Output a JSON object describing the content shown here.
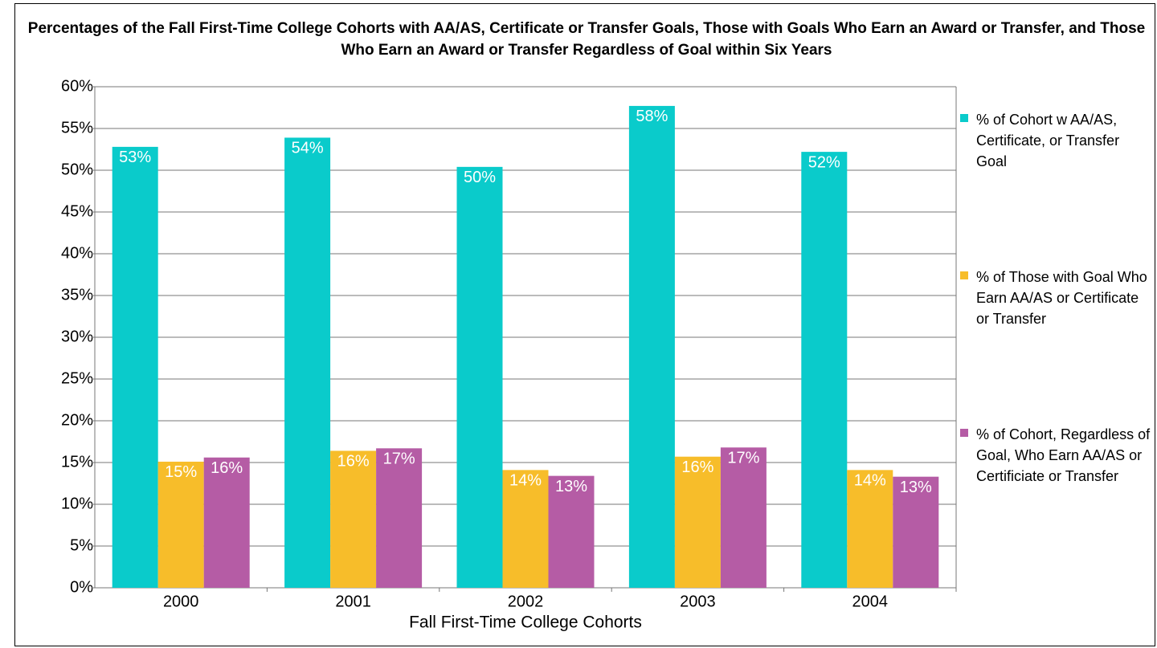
{
  "chart_data": {
    "type": "bar",
    "title": "Percentages of the Fall First-Time College Cohorts with AA/AS, Certificate or Transfer Goals, Those with Goals Who Earn an Award or Transfer, and Those Who Earn an Award or Transfer Regardless of Goal within Six Years",
    "x_label": "Fall First-Time College Cohorts",
    "categories": [
      "2000",
      "2001",
      "2002",
      "2003",
      "2004"
    ],
    "series": [
      {
        "name": "% of Cohort w AA/AS, Certificate, or Transfer Goal",
        "color": "#0acbcb",
        "values": [
          52.8,
          53.9,
          50.4,
          57.7,
          52.2
        ],
        "value_labels": [
          "53%",
          "54%",
          "50%",
          "58%",
          "52%"
        ]
      },
      {
        "name": "% of Those with Goal Who Earn AA/AS or Certificate or Transfer",
        "color": "#f7bd2a",
        "values": [
          15.1,
          16.4,
          14.1,
          15.7,
          14.1
        ],
        "value_labels": [
          "15%",
          "16%",
          "14%",
          "16%",
          "14%"
        ]
      },
      {
        "name": "% of Cohort, Regardless of Goal, Who Earn AA/AS or Certificiate or Transfer",
        "color": "#b55ca5",
        "values": [
          15.6,
          16.7,
          13.4,
          16.8,
          13.3
        ],
        "value_labels": [
          "16%",
          "17%",
          "13%",
          "17%",
          "13%"
        ]
      }
    ],
    "ylim": [
      0,
      60
    ],
    "yticks": [
      {
        "value": 0,
        "label": "0%"
      },
      {
        "value": 5,
        "label": "5%"
      },
      {
        "value": 10,
        "label": "10%"
      },
      {
        "value": 15,
        "label": "15%"
      },
      {
        "value": 20,
        "label": "20%"
      },
      {
        "value": 25,
        "label": "25%"
      },
      {
        "value": 30,
        "label": "30%"
      },
      {
        "value": 35,
        "label": "35%"
      },
      {
        "value": 40,
        "label": "40%"
      },
      {
        "value": 45,
        "label": "45%"
      },
      {
        "value": 50,
        "label": "50%"
      },
      {
        "value": 55,
        "label": "55%"
      },
      {
        "value": 60,
        "label": "60%"
      }
    ],
    "grid": true,
    "legend": "right"
  }
}
